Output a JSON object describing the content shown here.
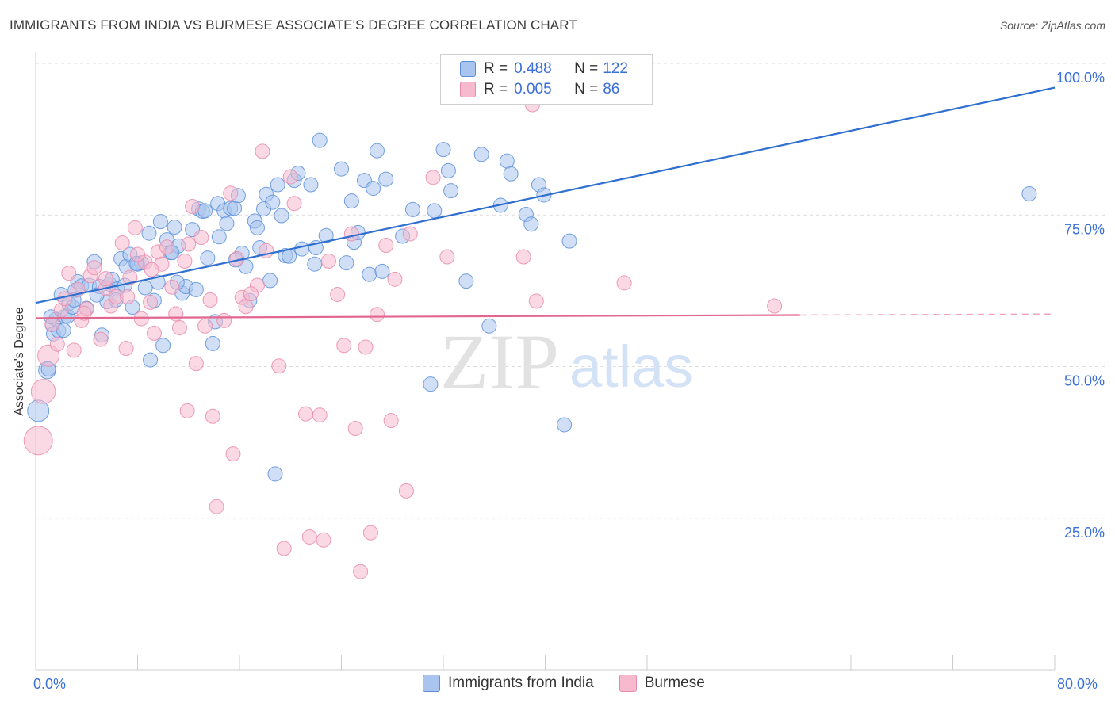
{
  "header": {
    "title": "IMMIGRANTS FROM INDIA VS BURMESE ASSOCIATE'S DEGREE CORRELATION CHART",
    "source": "Source: ZipAtlas.com"
  },
  "legend_top": {
    "rows": [
      {
        "r_label": "R =",
        "r_value": "0.488",
        "n_label": "N =",
        "n_value": "122"
      },
      {
        "r_label": "R =",
        "r_value": "0.005",
        "n_label": "N =",
        "n_value": "86"
      }
    ]
  },
  "legend_bottom": {
    "items": [
      "Immigrants from India",
      "Burmese"
    ]
  },
  "watermark": {
    "zip": "ZIP",
    "atlas": "atlas"
  },
  "colors": {
    "india_fill": "#a9c4ee",
    "india_stroke": "#5b8fd9",
    "india_line": "#2f6fd0",
    "burmese_fill": "#f6b9cd",
    "burmese_stroke": "#e98aab",
    "burmese_line": "#e2678f",
    "tick_label": "#3a6fd8"
  },
  "chart_data": {
    "type": "scatter",
    "title": "IMMIGRANTS FROM INDIA VS BURMESE ASSOCIATE'S DEGREE CORRELATION CHART",
    "xlabel": "",
    "ylabel": "Associate's Degree",
    "xlim": [
      0,
      80
    ],
    "ylim": [
      0,
      105
    ],
    "x_tick_labels": [
      "0.0%",
      "80.0%"
    ],
    "y_ticks": [
      25,
      50,
      75,
      100
    ],
    "y_tick_labels": [
      "25.0%",
      "50.0%",
      "75.0%",
      "100.0%"
    ],
    "grid": true,
    "legend": "bottom",
    "series": [
      {
        "name": "Immigrants from India",
        "r": 0.488,
        "n": 122,
        "trend": {
          "x": [
            0,
            80
          ],
          "y": [
            60.5,
            96
          ]
        },
        "points": [
          [
            0.2,
            42.7,
            1.5
          ],
          [
            0.9,
            49.4,
            1.2
          ],
          [
            1.0,
            49.6,
            1.0
          ],
          [
            1.3,
            56.9,
            1.0
          ],
          [
            1.4,
            55.4,
            1.0
          ],
          [
            1.6,
            57.8,
            1.0
          ],
          [
            1.8,
            55.9,
            1.0
          ],
          [
            2.0,
            61.9,
            1.0
          ],
          [
            2.3,
            58.3,
            1.0
          ],
          [
            2.5,
            58.3,
            1.0
          ],
          [
            2.6,
            60.4,
            1.0
          ],
          [
            2.9,
            59.8,
            1.0
          ],
          [
            3.1,
            62.6,
            1.0
          ],
          [
            3.3,
            64.0,
            1.0
          ],
          [
            3.6,
            63.3,
            1.0
          ],
          [
            4.0,
            59.6,
            1.0
          ],
          [
            4.2,
            63.4,
            1.0
          ],
          [
            4.6,
            67.3,
            1.0
          ],
          [
            5.0,
            63.2,
            1.0
          ],
          [
            5.2,
            55.2,
            1.0
          ],
          [
            5.6,
            60.7,
            1.0
          ],
          [
            5.8,
            63.6,
            1.0
          ],
          [
            6.0,
            64.4,
            1.0
          ],
          [
            6.4,
            62.8,
            1.0
          ],
          [
            6.7,
            67.8,
            1.0
          ],
          [
            7.0,
            63.4,
            1.0
          ],
          [
            7.1,
            66.5,
            1.0
          ],
          [
            7.4,
            68.5,
            1.0
          ],
          [
            7.6,
            59.8,
            1.0
          ],
          [
            8.0,
            66.9,
            1.0
          ],
          [
            8.3,
            67.1,
            1.0
          ],
          [
            8.6,
            63.0,
            1.0
          ],
          [
            8.9,
            72.0,
            1.0
          ],
          [
            9.0,
            51.1,
            1.0
          ],
          [
            9.3,
            60.9,
            1.0
          ],
          [
            9.6,
            63.9,
            1.0
          ],
          [
            9.8,
            73.9,
            1.0
          ],
          [
            10.0,
            53.5,
            1.0
          ],
          [
            10.3,
            70.9,
            1.0
          ],
          [
            10.6,
            68.8,
            1.0
          ],
          [
            10.9,
            73.0,
            1.0
          ],
          [
            11.2,
            69.9,
            1.0
          ],
          [
            11.5,
            62.1,
            1.0
          ],
          [
            11.8,
            63.2,
            1.0
          ],
          [
            12.3,
            72.6,
            1.0
          ],
          [
            12.6,
            62.7,
            1.0
          ],
          [
            12.8,
            76.0,
            1.0
          ],
          [
            13.1,
            75.6,
            1.0
          ],
          [
            13.5,
            67.9,
            1.0
          ],
          [
            13.9,
            53.8,
            1.0
          ],
          [
            14.1,
            57.4,
            1.0
          ],
          [
            14.3,
            76.9,
            1.0
          ],
          [
            14.4,
            71.4,
            1.0
          ],
          [
            14.8,
            75.7,
            1.0
          ],
          [
            15.0,
            73.6,
            1.0
          ],
          [
            15.3,
            76.1,
            1.0
          ],
          [
            15.6,
            76.1,
            1.0
          ],
          [
            15.9,
            78.2,
            1.0
          ],
          [
            16.2,
            68.7,
            1.0
          ],
          [
            16.5,
            66.5,
            1.0
          ],
          [
            16.8,
            60.9,
            1.0
          ],
          [
            17.2,
            74.0,
            1.0
          ],
          [
            17.4,
            72.9,
            1.0
          ],
          [
            17.6,
            69.6,
            1.0
          ],
          [
            17.9,
            76.0,
            1.0
          ],
          [
            18.1,
            78.4,
            1.0
          ],
          [
            18.4,
            64.2,
            1.0
          ],
          [
            18.6,
            77.1,
            1.0
          ],
          [
            19.0,
            80.0,
            1.0
          ],
          [
            19.3,
            74.9,
            1.0
          ],
          [
            19.6,
            68.3,
            1.0
          ],
          [
            19.9,
            68.2,
            1.0
          ],
          [
            20.3,
            80.7,
            1.0
          ],
          [
            20.6,
            81.9,
            1.0
          ],
          [
            20.9,
            69.4,
            1.0
          ],
          [
            21.6,
            80.0,
            1.0
          ],
          [
            21.9,
            66.9,
            1.0
          ],
          [
            22.0,
            69.6,
            1.0
          ],
          [
            22.3,
            87.3,
            1.0
          ],
          [
            22.8,
            71.6,
            1.0
          ],
          [
            24.0,
            82.6,
            1.0
          ],
          [
            24.4,
            67.1,
            1.0
          ],
          [
            24.8,
            77.3,
            1.0
          ],
          [
            25.0,
            70.5,
            1.0
          ],
          [
            25.3,
            72.1,
            1.0
          ],
          [
            25.8,
            80.7,
            1.0
          ],
          [
            26.2,
            65.2,
            1.0
          ],
          [
            26.5,
            79.4,
            1.0
          ],
          [
            26.8,
            85.6,
            1.0
          ],
          [
            27.2,
            65.7,
            1.0
          ],
          [
            27.5,
            80.9,
            1.0
          ],
          [
            28.8,
            71.5,
            1.0
          ],
          [
            29.6,
            75.9,
            1.0
          ],
          [
            31.0,
            47.1,
            1.0
          ],
          [
            31.3,
            75.7,
            1.0
          ],
          [
            32.0,
            85.8,
            1.0
          ],
          [
            32.4,
            82.3,
            1.0
          ],
          [
            32.6,
            79.0,
            1.0
          ],
          [
            33.8,
            64.1,
            1.0
          ],
          [
            35.0,
            85.0,
            1.0
          ],
          [
            35.6,
            56.7,
            1.0
          ],
          [
            36.5,
            76.6,
            1.0
          ],
          [
            37.0,
            83.9,
            1.0
          ],
          [
            37.3,
            81.8,
            1.0
          ],
          [
            38.5,
            75.1,
            1.0
          ],
          [
            38.9,
            73.5,
            1.0
          ],
          [
            39.5,
            80.0,
            1.0
          ],
          [
            39.9,
            78.3,
            1.0
          ],
          [
            41.5,
            40.4,
            1.0
          ],
          [
            41.9,
            70.7,
            1.0
          ],
          [
            78.0,
            78.5,
            1.0
          ],
          [
            10.7,
            68.8,
            1.0
          ],
          [
            4.8,
            61.8,
            1.0
          ],
          [
            2.2,
            56.0,
            1.0
          ],
          [
            6.3,
            61.0,
            1.0
          ],
          [
            7.9,
            67.0,
            1.0
          ],
          [
            11.1,
            63.9,
            1.0
          ],
          [
            13.3,
            75.7,
            1.0
          ],
          [
            15.7,
            67.6,
            1.0
          ],
          [
            18.8,
            32.3,
            1.0
          ],
          [
            3.0,
            61.0,
            1.0
          ],
          [
            1.2,
            58.2,
            1.0
          ]
        ]
      },
      {
        "name": "Burmese",
        "r": 0.005,
        "n": 86,
        "trend": {
          "x": [
            0,
            60
          ],
          "y": [
            58.0,
            58.5
          ],
          "dashed_to": 80
        },
        "points": [
          [
            0.2,
            37.8,
            2.0
          ],
          [
            0.6,
            45.9,
            1.7
          ],
          [
            1.0,
            51.8,
            1.5
          ],
          [
            1.3,
            57.0,
            1.0
          ],
          [
            1.7,
            53.7,
            1.0
          ],
          [
            2.0,
            59.3,
            1.0
          ],
          [
            2.3,
            61.2,
            1.0
          ],
          [
            2.6,
            65.4,
            1.0
          ],
          [
            3.0,
            52.7,
            1.0
          ],
          [
            3.3,
            62.7,
            1.0
          ],
          [
            3.6,
            57.6,
            1.0
          ],
          [
            4.0,
            59.5,
            1.0
          ],
          [
            4.3,
            65.0,
            1.0
          ],
          [
            4.6,
            66.3,
            1.0
          ],
          [
            5.1,
            54.5,
            1.0
          ],
          [
            5.5,
            62.9,
            1.0
          ],
          [
            5.9,
            60.0,
            1.0
          ],
          [
            6.3,
            61.5,
            1.0
          ],
          [
            6.8,
            70.4,
            1.0
          ],
          [
            7.1,
            53.0,
            1.0
          ],
          [
            7.4,
            64.7,
            1.0
          ],
          [
            7.8,
            72.9,
            1.0
          ],
          [
            8.3,
            57.9,
            1.0
          ],
          [
            8.6,
            67.2,
            1.0
          ],
          [
            9.0,
            60.6,
            1.0
          ],
          [
            9.3,
            55.5,
            1.0
          ],
          [
            9.6,
            68.9,
            1.0
          ],
          [
            9.9,
            66.9,
            1.0
          ],
          [
            10.3,
            69.7,
            1.0
          ],
          [
            10.7,
            63.1,
            1.0
          ],
          [
            11.0,
            58.7,
            1.0
          ],
          [
            11.3,
            56.4,
            1.0
          ],
          [
            11.7,
            67.4,
            1.0
          ],
          [
            11.9,
            42.7,
            1.0
          ],
          [
            12.3,
            76.4,
            1.0
          ],
          [
            12.6,
            50.5,
            1.0
          ],
          [
            13.0,
            71.3,
            1.0
          ],
          [
            13.3,
            56.7,
            1.0
          ],
          [
            13.7,
            61.0,
            1.0
          ],
          [
            13.9,
            41.8,
            1.0
          ],
          [
            14.2,
            26.9,
            1.0
          ],
          [
            14.8,
            57.6,
            1.0
          ],
          [
            15.3,
            78.6,
            1.0
          ],
          [
            15.5,
            35.6,
            1.0
          ],
          [
            15.8,
            67.8,
            1.0
          ],
          [
            16.2,
            61.4,
            1.0
          ],
          [
            16.5,
            59.9,
            1.0
          ],
          [
            17.4,
            63.4,
            1.0
          ],
          [
            17.8,
            85.5,
            1.0
          ],
          [
            18.1,
            69.1,
            1.0
          ],
          [
            19.1,
            50.1,
            1.0
          ],
          [
            19.5,
            20.0,
            1.0
          ],
          [
            20.0,
            81.3,
            1.0
          ],
          [
            20.3,
            76.9,
            1.0
          ],
          [
            21.2,
            42.2,
            1.0
          ],
          [
            21.5,
            21.9,
            1.0
          ],
          [
            22.3,
            42.0,
            1.0
          ],
          [
            22.6,
            21.4,
            1.0
          ],
          [
            23.0,
            67.4,
            1.0
          ],
          [
            23.7,
            61.9,
            1.0
          ],
          [
            24.2,
            53.5,
            1.0
          ],
          [
            24.8,
            71.9,
            1.0
          ],
          [
            25.1,
            39.8,
            1.0
          ],
          [
            25.5,
            16.2,
            1.0
          ],
          [
            25.9,
            53.2,
            1.0
          ],
          [
            26.3,
            22.6,
            1.0
          ],
          [
            26.8,
            58.6,
            1.0
          ],
          [
            27.5,
            70.0,
            1.0
          ],
          [
            27.9,
            41.1,
            1.0
          ],
          [
            28.2,
            64.4,
            1.0
          ],
          [
            29.1,
            29.5,
            1.0
          ],
          [
            29.4,
            71.9,
            1.0
          ],
          [
            31.2,
            81.2,
            1.0
          ],
          [
            32.3,
            68.1,
            1.0
          ],
          [
            38.3,
            68.1,
            1.0
          ],
          [
            39.0,
            93.2,
            1.0
          ],
          [
            39.3,
            60.8,
            1.0
          ],
          [
            46.2,
            63.8,
            1.0
          ],
          [
            58.0,
            60.0,
            1.0
          ],
          [
            7.2,
            61.5,
            1.0
          ],
          [
            9.1,
            66.0,
            1.0
          ],
          [
            5.5,
            64.5,
            1.0
          ],
          [
            12.0,
            70.2,
            1.0
          ],
          [
            3.8,
            58.8,
            1.0
          ],
          [
            16.9,
            62.0,
            1.0
          ],
          [
            8.0,
            68.5,
            1.0
          ]
        ]
      }
    ]
  }
}
